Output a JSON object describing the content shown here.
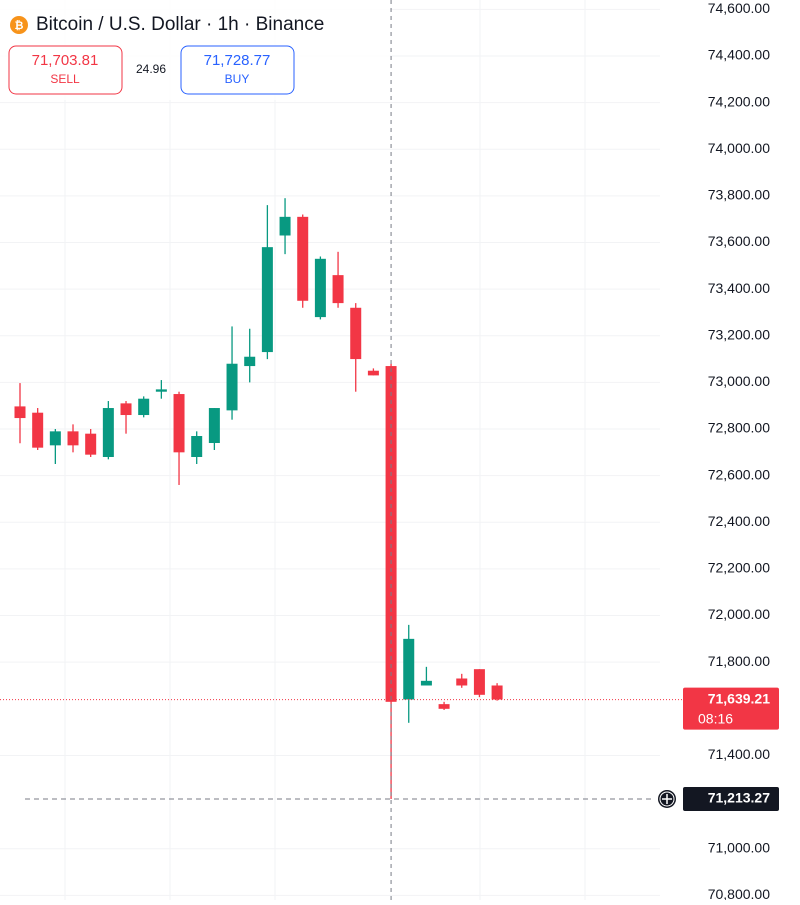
{
  "header": {
    "title": "Bitcoin / U.S. Dollar · 1h · Binance",
    "sell_price": "71,703.81",
    "sell_label": "SELL",
    "spread": "24.96",
    "buy_price": "71,728.77",
    "buy_label": "BUY"
  },
  "chart_data": {
    "type": "candlestick",
    "up_color": "#089981",
    "down_color": "#f23645",
    "ylim": [
      70780,
      74640
    ],
    "yticks": [
      {
        "value": 74600,
        "label": "74,600.00"
      },
      {
        "value": 74400,
        "label": "74,400.00"
      },
      {
        "value": 74200,
        "label": "74,200.00"
      },
      {
        "value": 74000,
        "label": "74,000.00"
      },
      {
        "value": 73800,
        "label": "73,800.00"
      },
      {
        "value": 73600,
        "label": "73,600.00"
      },
      {
        "value": 73400,
        "label": "73,400.00"
      },
      {
        "value": 73200,
        "label": "73,200.00"
      },
      {
        "value": 73000,
        "label": "73,000.00"
      },
      {
        "value": 72800,
        "label": "72,800.00"
      },
      {
        "value": 72600,
        "label": "72,600.00"
      },
      {
        "value": 72400,
        "label": "72,400.00"
      },
      {
        "value": 72200,
        "label": "72,200.00"
      },
      {
        "value": 72000,
        "label": "72,000.00"
      },
      {
        "value": 71800,
        "label": "71,800.00"
      },
      {
        "value": 71400,
        "label": "71,400.00"
      },
      {
        "value": 71000,
        "label": "71,000.00"
      },
      {
        "value": 70800,
        "label": "70,800.00"
      }
    ],
    "open": [
      72897,
      72870,
      72730,
      72790,
      72780,
      72680,
      72910,
      72860,
      72960,
      72950,
      72680,
      72740,
      72880,
      73070,
      73130,
      73630,
      73710,
      73280,
      73460,
      73320,
      73050,
      73070,
      71640,
      71700,
      71620,
      71730,
      71770,
      71700
    ],
    "high": [
      72997,
      72890,
      72800,
      72820,
      72800,
      72920,
      72920,
      72940,
      73010,
      72960,
      72790,
      72890,
      73240,
      73230,
      73760,
      73790,
      73720,
      73540,
      73560,
      73340,
      73060,
      73080,
      71960,
      71780,
      71630,
      71750,
      71770,
      71710
    ],
    "low": [
      72739,
      72710,
      72650,
      72700,
      72680,
      72670,
      72780,
      72850,
      72930,
      72560,
      72650,
      72710,
      72840,
      73000,
      73100,
      73550,
      73320,
      73270,
      73320,
      72960,
      73030,
      71213,
      71540,
      71700,
      71595,
      71690,
      71650,
      71635
    ],
    "close": [
      72847,
      72720,
      72790,
      72730,
      72690,
      72890,
      72860,
      72930,
      72970,
      72700,
      72770,
      72890,
      73080,
      73110,
      73580,
      73710,
      73350,
      73530,
      73340,
      73100,
      73030,
      71630,
      71900,
      71720,
      71600,
      71700,
      71660,
      71640
    ],
    "last_price": {
      "value": 71639.21,
      "label": "71,639.21"
    },
    "countdown": "08:16",
    "crosshair": {
      "value": 71213.27,
      "label": "71,213.27"
    }
  }
}
